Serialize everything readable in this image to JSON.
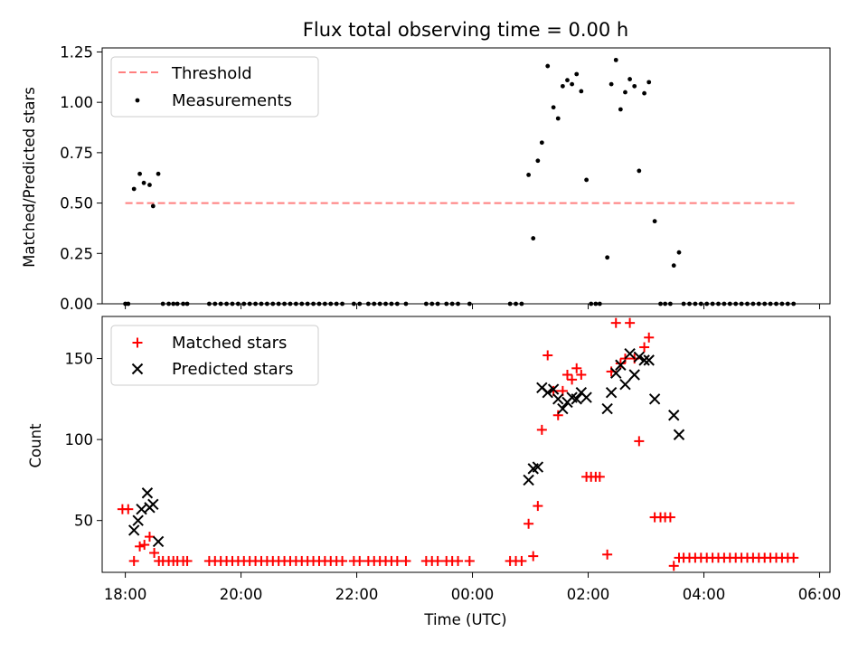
{
  "chart_data": [
    {
      "type": "scatter",
      "title": "Flux total observing time = 0.00 h",
      "ylabel": "Matched/Predicted stars",
      "ylim": [
        0,
        1.27
      ],
      "yticks": [
        "0.00",
        "0.25",
        "0.50",
        "0.75",
        "1.00",
        "1.25"
      ],
      "legend_position": "top-left",
      "threshold": {
        "name": "Threshold",
        "value": 0.5,
        "x_range": [
          18.0,
          29.6
        ],
        "color": "#ff7f7f"
      },
      "series": [
        {
          "name": "Measurements",
          "color": "#000000",
          "points": [
            [
              18.0,
              0
            ],
            [
              18.05,
              0
            ],
            [
              18.15,
              0.57
            ],
            [
              18.25,
              0.645
            ],
            [
              18.32,
              0.6
            ],
            [
              18.42,
              0.59
            ],
            [
              18.48,
              0.485
            ],
            [
              18.57,
              0.645
            ],
            [
              18.65,
              0
            ],
            [
              18.75,
              0
            ],
            [
              18.83,
              0
            ],
            [
              18.9,
              0
            ],
            [
              19.0,
              0
            ],
            [
              19.07,
              0
            ],
            [
              19.45,
              0
            ],
            [
              19.55,
              0
            ],
            [
              19.65,
              0
            ],
            [
              19.75,
              0
            ],
            [
              19.85,
              0
            ],
            [
              19.95,
              0
            ],
            [
              20.05,
              0
            ],
            [
              20.15,
              0
            ],
            [
              20.25,
              0
            ],
            [
              20.35,
              0
            ],
            [
              20.45,
              0
            ],
            [
              20.55,
              0
            ],
            [
              20.65,
              0
            ],
            [
              20.75,
              0
            ],
            [
              20.85,
              0
            ],
            [
              20.95,
              0
            ],
            [
              21.05,
              0
            ],
            [
              21.15,
              0
            ],
            [
              21.25,
              0
            ],
            [
              21.35,
              0
            ],
            [
              21.45,
              0
            ],
            [
              21.55,
              0
            ],
            [
              21.65,
              0
            ],
            [
              21.75,
              0
            ],
            [
              21.95,
              0
            ],
            [
              22.05,
              0
            ],
            [
              22.2,
              0
            ],
            [
              22.3,
              0
            ],
            [
              22.4,
              0
            ],
            [
              22.5,
              0
            ],
            [
              22.6,
              0
            ],
            [
              22.7,
              0
            ],
            [
              22.85,
              0
            ],
            [
              23.2,
              0
            ],
            [
              23.3,
              0
            ],
            [
              23.4,
              0
            ],
            [
              23.55,
              0
            ],
            [
              23.65,
              0
            ],
            [
              23.75,
              0
            ],
            [
              23.95,
              0
            ],
            [
              24.65,
              0
            ],
            [
              24.75,
              0
            ],
            [
              24.85,
              0
            ],
            [
              24.97,
              0.64
            ],
            [
              25.05,
              0.325
            ],
            [
              25.13,
              0.71
            ],
            [
              25.2,
              0.8
            ],
            [
              25.3,
              1.18
            ],
            [
              25.4,
              0.975
            ],
            [
              25.48,
              0.92
            ],
            [
              25.56,
              1.08
            ],
            [
              25.64,
              1.11
            ],
            [
              25.72,
              1.09
            ],
            [
              25.8,
              1.14
            ],
            [
              25.88,
              1.055
            ],
            [
              25.97,
              0.615
            ],
            [
              26.05,
              0
            ],
            [
              26.13,
              0
            ],
            [
              26.2,
              0
            ],
            [
              26.33,
              0.23
            ],
            [
              26.4,
              1.09
            ],
            [
              26.48,
              1.21
            ],
            [
              26.56,
              0.965
            ],
            [
              26.64,
              1.05
            ],
            [
              26.72,
              1.115
            ],
            [
              26.8,
              1.08
            ],
            [
              26.88,
              0.66
            ],
            [
              26.97,
              1.045
            ],
            [
              27.05,
              1.1
            ],
            [
              27.15,
              0.41
            ],
            [
              27.25,
              0
            ],
            [
              27.33,
              0
            ],
            [
              27.42,
              0
            ],
            [
              27.48,
              0.19
            ],
            [
              27.57,
              0.255
            ],
            [
              27.65,
              0
            ],
            [
              27.75,
              0
            ],
            [
              27.85,
              0
            ],
            [
              27.95,
              0
            ],
            [
              28.05,
              0
            ],
            [
              28.15,
              0
            ],
            [
              28.25,
              0
            ],
            [
              28.35,
              0
            ],
            [
              28.45,
              0
            ],
            [
              28.55,
              0
            ],
            [
              28.65,
              0
            ],
            [
              28.75,
              0
            ],
            [
              28.85,
              0
            ],
            [
              28.95,
              0
            ],
            [
              29.05,
              0
            ],
            [
              29.15,
              0
            ],
            [
              29.25,
              0
            ],
            [
              29.35,
              0
            ],
            [
              29.45,
              0
            ],
            [
              29.55,
              0
            ]
          ]
        }
      ]
    },
    {
      "type": "scatter",
      "xlabel": "Time (UTC)",
      "ylabel": "Count",
      "xlim": [
        17.6,
        30.18
      ],
      "ylim": [
        18,
        176
      ],
      "xticks": [
        "18:00",
        "20:00",
        "22:00",
        "00:00",
        "02:00",
        "04:00",
        "06:00"
      ],
      "yticks": [
        "50",
        "100",
        "150"
      ],
      "legend_position": "top-left",
      "series": [
        {
          "name": "Matched stars",
          "marker": "plus",
          "color": "#ff0000",
          "points": [
            [
              17.95,
              57
            ],
            [
              18.05,
              57
            ],
            [
              18.15,
              25
            ],
            [
              18.25,
              34
            ],
            [
              18.33,
              35
            ],
            [
              18.42,
              40
            ],
            [
              18.5,
              30
            ],
            [
              18.58,
              25
            ],
            [
              18.65,
              25
            ],
            [
              18.75,
              25
            ],
            [
              18.83,
              25
            ],
            [
              18.9,
              25
            ],
            [
              19.0,
              25
            ],
            [
              19.07,
              25
            ],
            [
              19.45,
              25
            ],
            [
              19.55,
              25
            ],
            [
              19.65,
              25
            ],
            [
              19.75,
              25
            ],
            [
              19.85,
              25
            ],
            [
              19.95,
              25
            ],
            [
              20.05,
              25
            ],
            [
              20.15,
              25
            ],
            [
              20.25,
              25
            ],
            [
              20.35,
              25
            ],
            [
              20.45,
              25
            ],
            [
              20.55,
              25
            ],
            [
              20.65,
              25
            ],
            [
              20.75,
              25
            ],
            [
              20.85,
              25
            ],
            [
              20.95,
              25
            ],
            [
              21.05,
              25
            ],
            [
              21.15,
              25
            ],
            [
              21.25,
              25
            ],
            [
              21.35,
              25
            ],
            [
              21.45,
              25
            ],
            [
              21.55,
              25
            ],
            [
              21.65,
              25
            ],
            [
              21.75,
              25
            ],
            [
              21.95,
              25
            ],
            [
              22.05,
              25
            ],
            [
              22.2,
              25
            ],
            [
              22.3,
              25
            ],
            [
              22.4,
              25
            ],
            [
              22.5,
              25
            ],
            [
              22.6,
              25
            ],
            [
              22.7,
              25
            ],
            [
              22.85,
              25
            ],
            [
              23.2,
              25
            ],
            [
              23.3,
              25
            ],
            [
              23.4,
              25
            ],
            [
              23.55,
              25
            ],
            [
              23.65,
              25
            ],
            [
              23.75,
              25
            ],
            [
              23.95,
              25
            ],
            [
              24.65,
              25
            ],
            [
              24.75,
              25
            ],
            [
              24.85,
              25
            ],
            [
              24.97,
              48
            ],
            [
              25.05,
              28
            ],
            [
              25.13,
              59
            ],
            [
              25.2,
              106
            ],
            [
              25.3,
              152
            ],
            [
              25.4,
              130
            ],
            [
              25.48,
              115
            ],
            [
              25.56,
              130
            ],
            [
              25.64,
              140
            ],
            [
              25.72,
              137
            ],
            [
              25.8,
              144
            ],
            [
              25.88,
              140
            ],
            [
              25.97,
              77
            ],
            [
              26.05,
              77
            ],
            [
              26.13,
              77
            ],
            [
              26.2,
              77
            ],
            [
              26.33,
              29
            ],
            [
              26.4,
              142
            ],
            [
              26.48,
              172
            ],
            [
              26.56,
              147
            ],
            [
              26.64,
              150
            ],
            [
              26.72,
              172
            ],
            [
              26.8,
              150
            ],
            [
              26.88,
              99
            ],
            [
              26.97,
              157
            ],
            [
              27.05,
              163
            ],
            [
              27.15,
              52
            ],
            [
              27.25,
              52
            ],
            [
              27.33,
              52
            ],
            [
              27.42,
              52
            ],
            [
              27.48,
              22
            ],
            [
              27.57,
              27
            ],
            [
              27.65,
              27
            ],
            [
              27.75,
              27
            ],
            [
              27.85,
              27
            ],
            [
              27.95,
              27
            ],
            [
              28.05,
              27
            ],
            [
              28.15,
              27
            ],
            [
              28.25,
              27
            ],
            [
              28.35,
              27
            ],
            [
              28.45,
              27
            ],
            [
              28.55,
              27
            ],
            [
              28.65,
              27
            ],
            [
              28.75,
              27
            ],
            [
              28.85,
              27
            ],
            [
              28.95,
              27
            ],
            [
              29.05,
              27
            ],
            [
              29.15,
              27
            ],
            [
              29.25,
              27
            ],
            [
              29.35,
              27
            ],
            [
              29.45,
              27
            ],
            [
              29.55,
              27
            ]
          ]
        },
        {
          "name": "Predicted stars",
          "marker": "x",
          "color": "#000000",
          "points": [
            [
              18.15,
              44
            ],
            [
              18.22,
              50
            ],
            [
              18.28,
              57
            ],
            [
              18.38,
              67
            ],
            [
              18.42,
              58
            ],
            [
              18.48,
              60
            ],
            [
              18.57,
              37
            ],
            [
              24.97,
              75
            ],
            [
              25.05,
              82
            ],
            [
              25.13,
              83
            ],
            [
              25.2,
              132
            ],
            [
              25.3,
              129
            ],
            [
              25.4,
              131
            ],
            [
              25.48,
              125
            ],
            [
              25.56,
              119
            ],
            [
              25.64,
              123
            ],
            [
              25.72,
              126
            ],
            [
              25.8,
              125
            ],
            [
              25.88,
              129
            ],
            [
              25.97,
              126
            ],
            [
              26.33,
              119
            ],
            [
              26.4,
              129
            ],
            [
              26.48,
              141
            ],
            [
              26.56,
              146
            ],
            [
              26.64,
              134
            ],
            [
              26.72,
              153
            ],
            [
              26.8,
              140
            ],
            [
              26.88,
              151
            ],
            [
              26.97,
              149
            ],
            [
              27.05,
              149
            ],
            [
              27.15,
              125
            ],
            [
              27.48,
              115
            ],
            [
              27.57,
              103
            ]
          ]
        }
      ]
    }
  ]
}
